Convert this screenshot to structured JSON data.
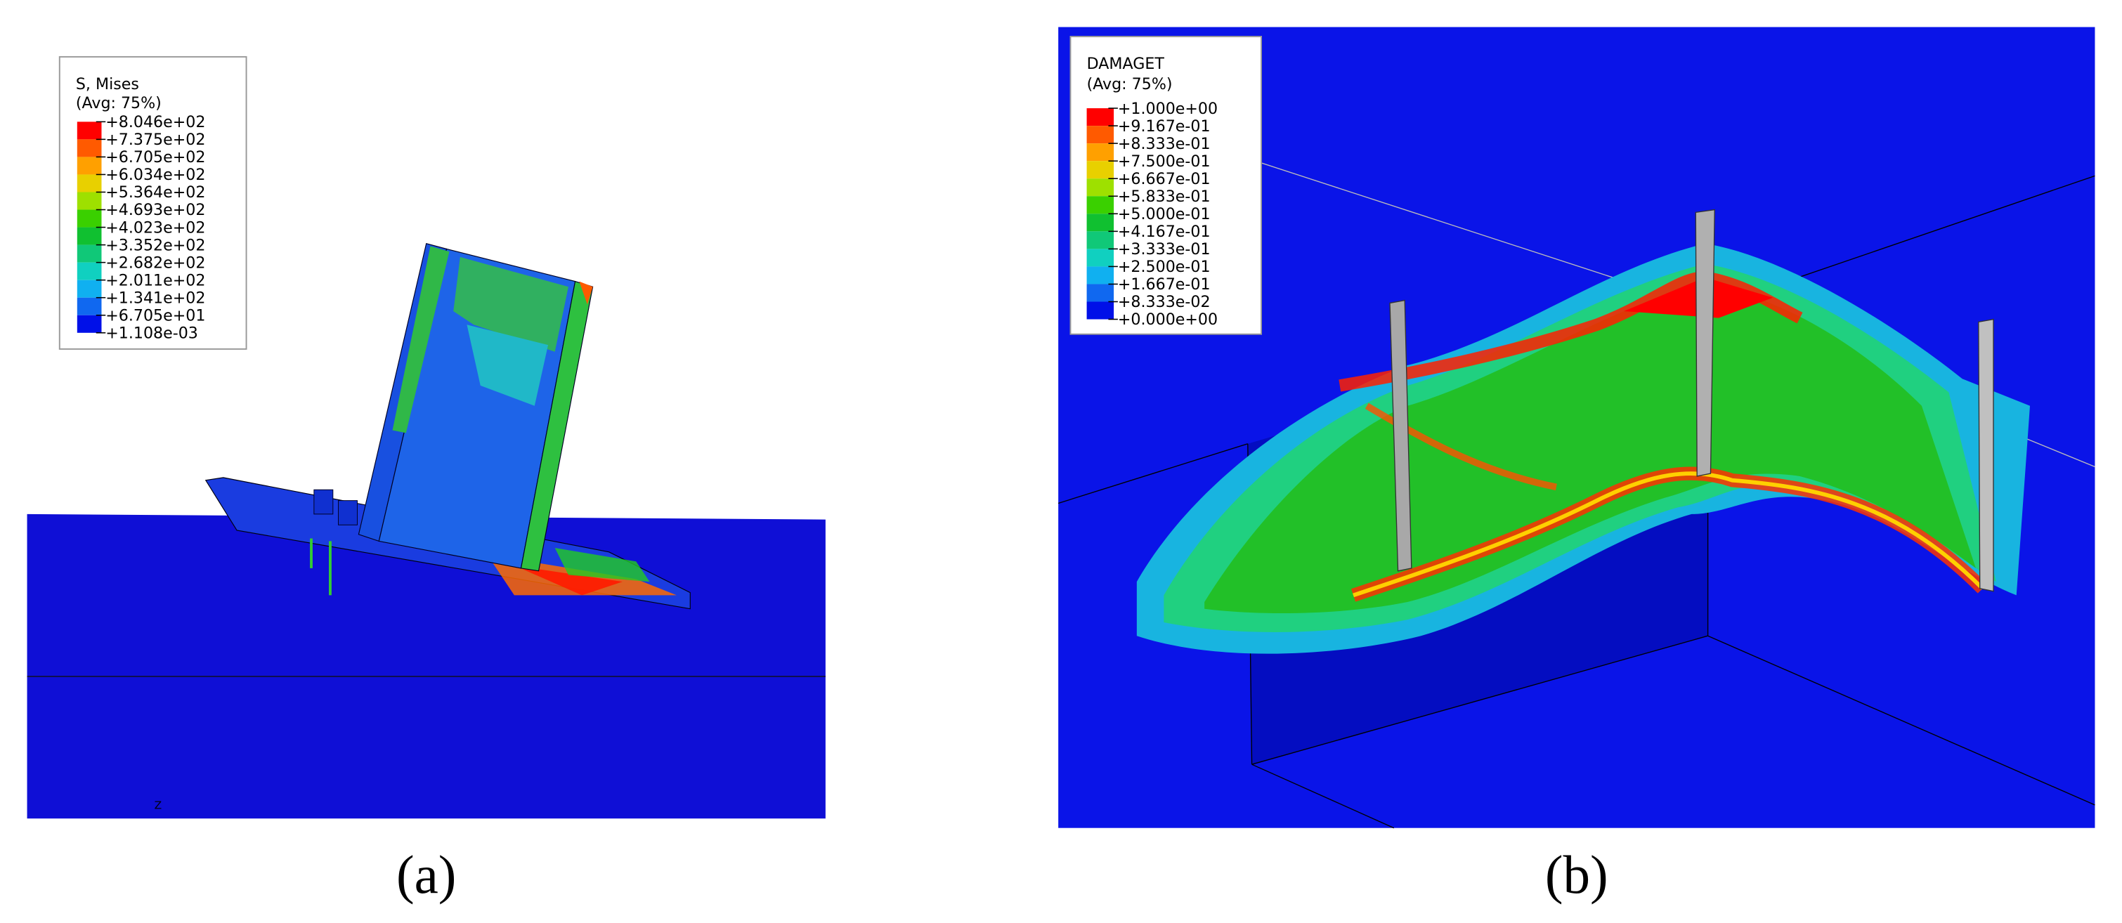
{
  "panels": [
    {
      "caption": "(a)",
      "triad_label": "Z",
      "legend": {
        "title": "S, Mises",
        "subtitle": "(Avg: 75%)",
        "labels": [
          "+8.046e+02",
          "+7.375e+02",
          "+6.705e+02",
          "+6.034e+02",
          "+5.364e+02",
          "+4.693e+02",
          "+4.023e+02",
          "+3.352e+02",
          "+2.682e+02",
          "+2.011e+02",
          "+1.341e+02",
          "+6.705e+01",
          "+1.108e-03"
        ]
      }
    },
    {
      "caption": "(b)",
      "legend": {
        "title": "DAMAGET",
        "subtitle": "(Avg: 75%)",
        "labels": [
          "+1.000e+00",
          "+9.167e-01",
          "+8.333e-01",
          "+7.500e-01",
          "+6.667e-01",
          "+5.833e-01",
          "+5.000e-01",
          "+4.167e-01",
          "+3.333e-01",
          "+2.500e-01",
          "+1.667e-01",
          "+8.333e-02",
          "+0.000e+00"
        ]
      }
    }
  ]
}
